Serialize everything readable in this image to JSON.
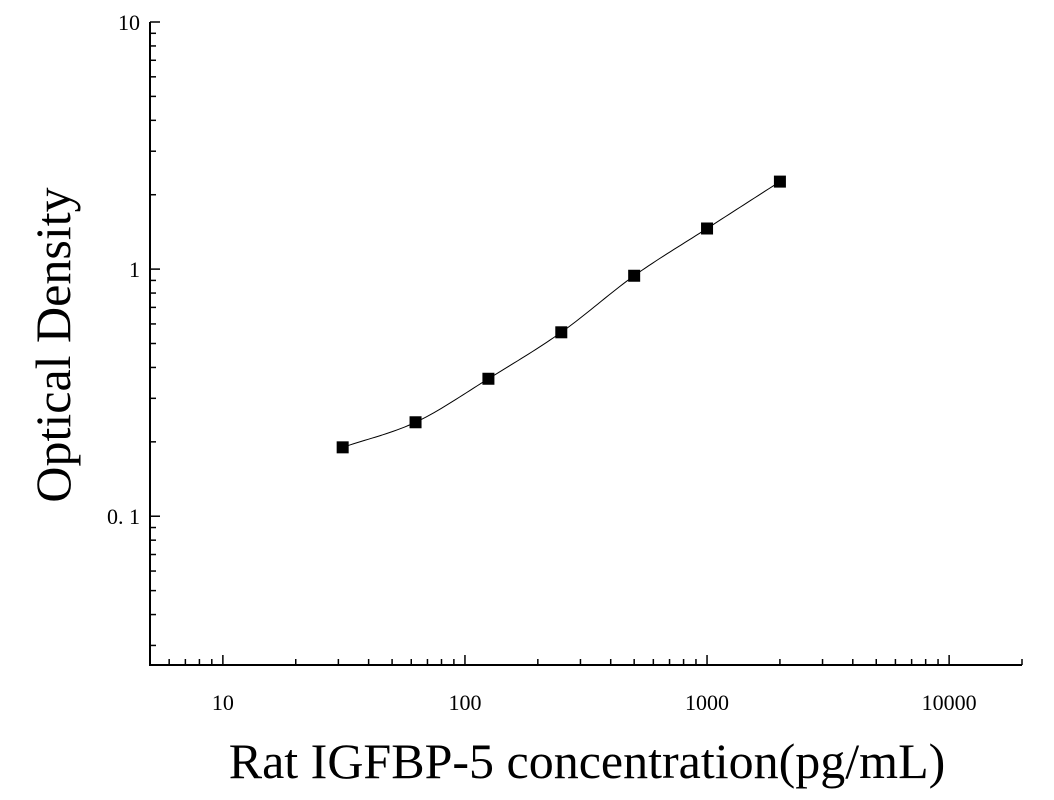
{
  "chart_data": {
    "type": "scatter",
    "title": "",
    "xlabel": "Rat IGFBP-5 concentration(pg/mL)",
    "ylabel": "Optical Density",
    "x_scale": "log",
    "y_scale": "log",
    "xlim": [
      5,
      20000
    ],
    "ylim": [
      0.025,
      10
    ],
    "x_ticks": [
      {
        "value": 10,
        "label": "10"
      },
      {
        "value": 100,
        "label": "100"
      },
      {
        "value": 1000,
        "label": "1000"
      },
      {
        "value": 10000,
        "label": "10000"
      }
    ],
    "y_ticks": [
      {
        "value": 0.1,
        "label": "0. 1"
      },
      {
        "value": 1,
        "label": "1"
      },
      {
        "value": 10,
        "label": "10"
      }
    ],
    "grid": false,
    "series": [
      {
        "marker": "square",
        "x": [
          31.25,
          62.5,
          125,
          250,
          500,
          1000,
          2000
        ],
        "y": [
          0.19,
          0.24,
          0.36,
          0.555,
          0.94,
          1.46,
          2.26
        ]
      }
    ],
    "fit_curve": true,
    "colors": {
      "marker": "#000000",
      "axis": "#000000",
      "curve": "#000000"
    }
  }
}
